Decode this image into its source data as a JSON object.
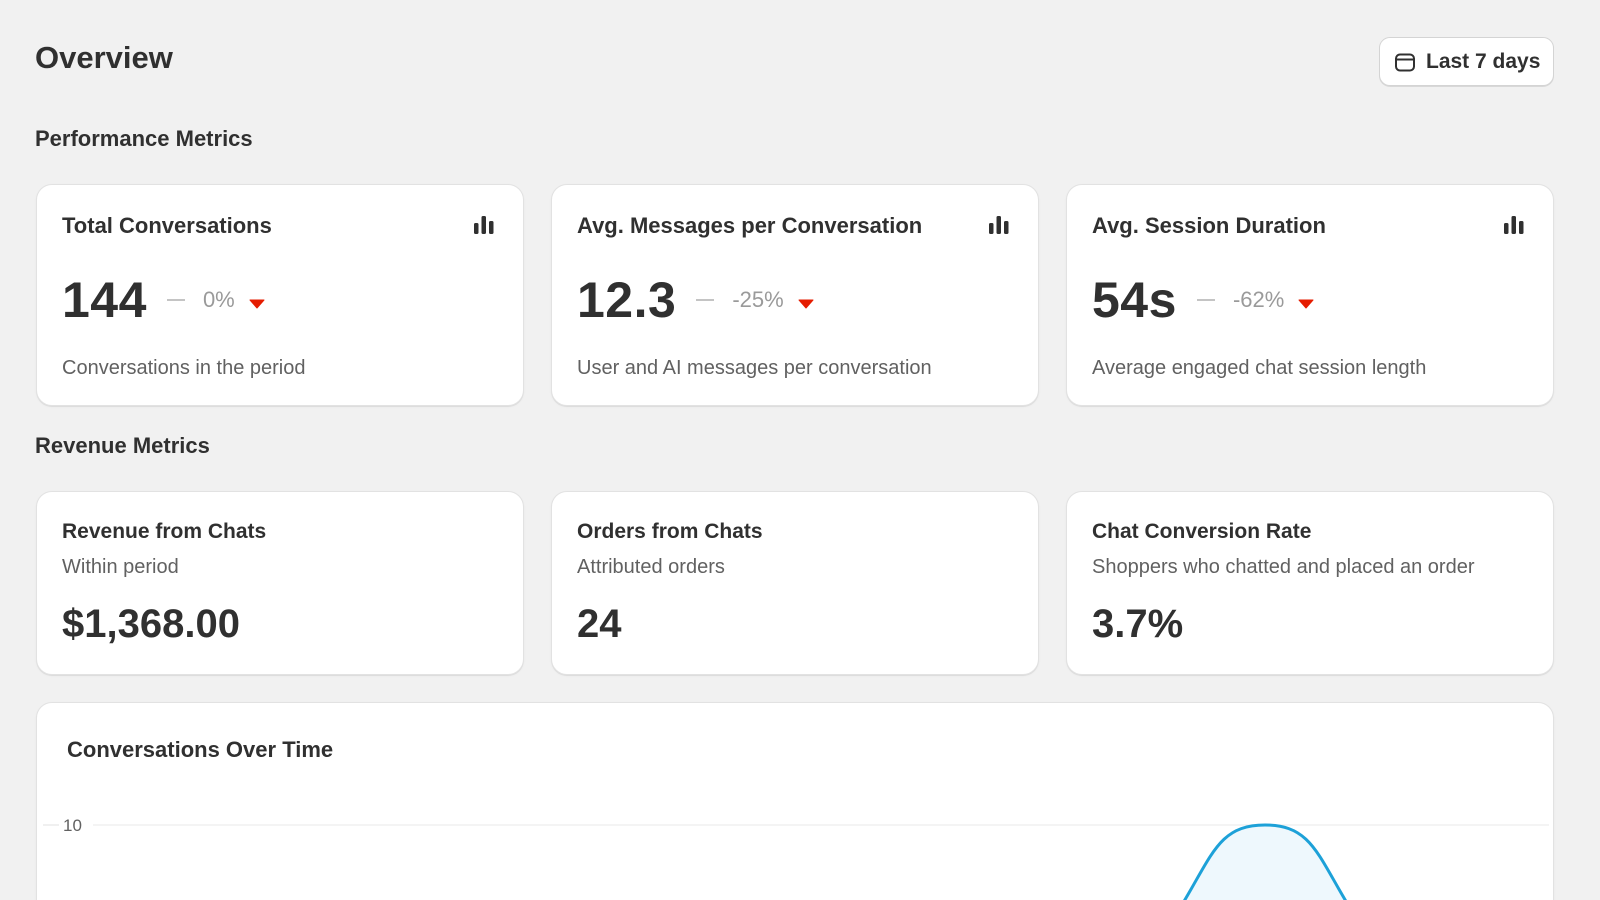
{
  "header": {
    "title": "Overview",
    "date_range_label": "Last 7 days"
  },
  "performance": {
    "heading": "Performance Metrics",
    "cards": [
      {
        "title": "Total Conversations",
        "value": "144",
        "change": "0%",
        "description": "Conversations in the period",
        "icon": "bar-chart-icon",
        "trend": "down"
      },
      {
        "title": "Avg. Messages per Conversation",
        "value": "12.3",
        "change": "-25%",
        "description": "User and AI messages per conversation",
        "icon": "bar-chart-icon",
        "trend": "down"
      },
      {
        "title": "Avg. Session Duration",
        "value": "54s",
        "change": "-62%",
        "description": "Average engaged chat session length",
        "icon": "bar-chart-icon",
        "trend": "down"
      }
    ]
  },
  "revenue": {
    "heading": "Revenue Metrics",
    "cards": [
      {
        "title": "Revenue from Chats",
        "subtitle": "Within period",
        "value": "$1,368.00"
      },
      {
        "title": "Orders from Chats",
        "subtitle": "Attributed orders",
        "value": "24"
      },
      {
        "title": "Chat Conversion Rate",
        "subtitle": "Shoppers who chatted and placed an order",
        "value": "3.7%"
      }
    ]
  },
  "chart": {
    "title": "Conversations Over Time"
  },
  "chart_data": {
    "type": "area",
    "title": "Conversations Over Time",
    "y_ticks": [
      "10"
    ],
    "ylim": [
      0,
      10
    ],
    "grid": true,
    "series": [
      {
        "peak_value": 10
      }
    ]
  },
  "colors": {
    "background": "#f1f1f1",
    "text": "#303030",
    "muted": "#616161",
    "trend_down": "#e51c00",
    "chart_line": "#1da1d8",
    "chart_fill": "#eef8fd"
  }
}
